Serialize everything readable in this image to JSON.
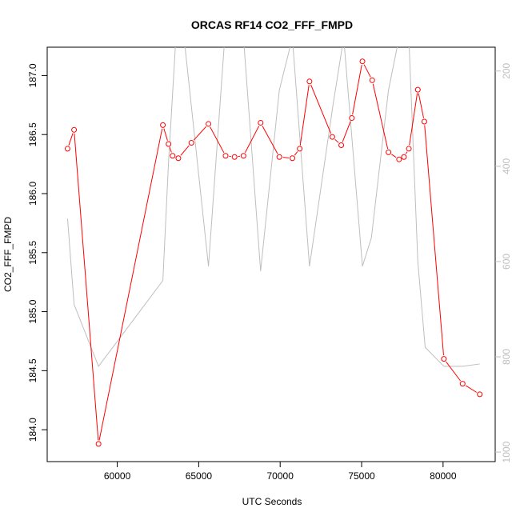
{
  "chart_data": {
    "type": "line",
    "title": "ORCAS RF14 CO2_FFF_FMPD",
    "xlabel": "UTC Seconds",
    "ylabel": "CO2_FFF_FMPD",
    "xlim": [
      55700,
      83200
    ],
    "ylim": [
      183.73,
      187.24
    ],
    "y2lim": [
      1020,
      150
    ],
    "y2_reversed": true,
    "x_ticks": [
      60000,
      65000,
      70000,
      75000,
      80000
    ],
    "x_tick_labels": [
      "60000",
      "65000",
      "70000",
      "75000",
      "80000"
    ],
    "y_ticks": [
      184.0,
      184.5,
      185.0,
      185.5,
      186.0,
      186.5,
      187.0
    ],
    "y_tick_labels": [
      "184.0",
      "184.5",
      "185.0",
      "185.5",
      "186.0",
      "186.5",
      "187.0"
    ],
    "y2_ticks": [
      200,
      400,
      600,
      800,
      1000
    ],
    "y2_tick_labels": [
      "200",
      "400",
      "600",
      "800",
      "1000"
    ],
    "grid": false,
    "series": [
      {
        "color": "#ff0000",
        "marker": "open-circle",
        "axis": "left",
        "x": [
          56950,
          57350,
          58850,
          62800,
          63150,
          63400,
          63750,
          64550,
          65600,
          66650,
          67200,
          67750,
          68800,
          69950,
          70750,
          71200,
          71800,
          73200,
          73750,
          74400,
          75050,
          75650,
          76650,
          77300,
          77600,
          77900,
          78450,
          78850,
          80050,
          81200,
          82250
        ],
        "y": [
          186.38,
          186.54,
          183.88,
          186.58,
          186.42,
          186.32,
          186.3,
          186.43,
          186.59,
          186.32,
          186.31,
          186.32,
          186.6,
          186.31,
          186.3,
          186.38,
          186.95,
          186.48,
          186.41,
          186.64,
          187.12,
          186.96,
          186.35,
          186.29,
          186.31,
          186.38,
          186.88,
          186.61,
          184.6,
          184.39,
          184.3
        ]
      },
      {
        "color": "#bebebe",
        "marker": "none",
        "axis": "right",
        "x": [
          56950,
          57350,
          58850,
          62800,
          63150,
          63600,
          64100,
          65600,
          66600,
          67200,
          67750,
          68800,
          69950,
          70750,
          71800,
          73250,
          73900,
          75050,
          75600,
          76650,
          77300,
          77900,
          78450,
          78900,
          80050,
          81200,
          82250
        ],
        "y": [
          510,
          690,
          820,
          640,
          390,
          130,
          130,
          610,
          130,
          130,
          130,
          620,
          240,
          130,
          610,
          270,
          130,
          610,
          550,
          240,
          130,
          130,
          600,
          780,
          820,
          820,
          815
        ]
      }
    ]
  }
}
